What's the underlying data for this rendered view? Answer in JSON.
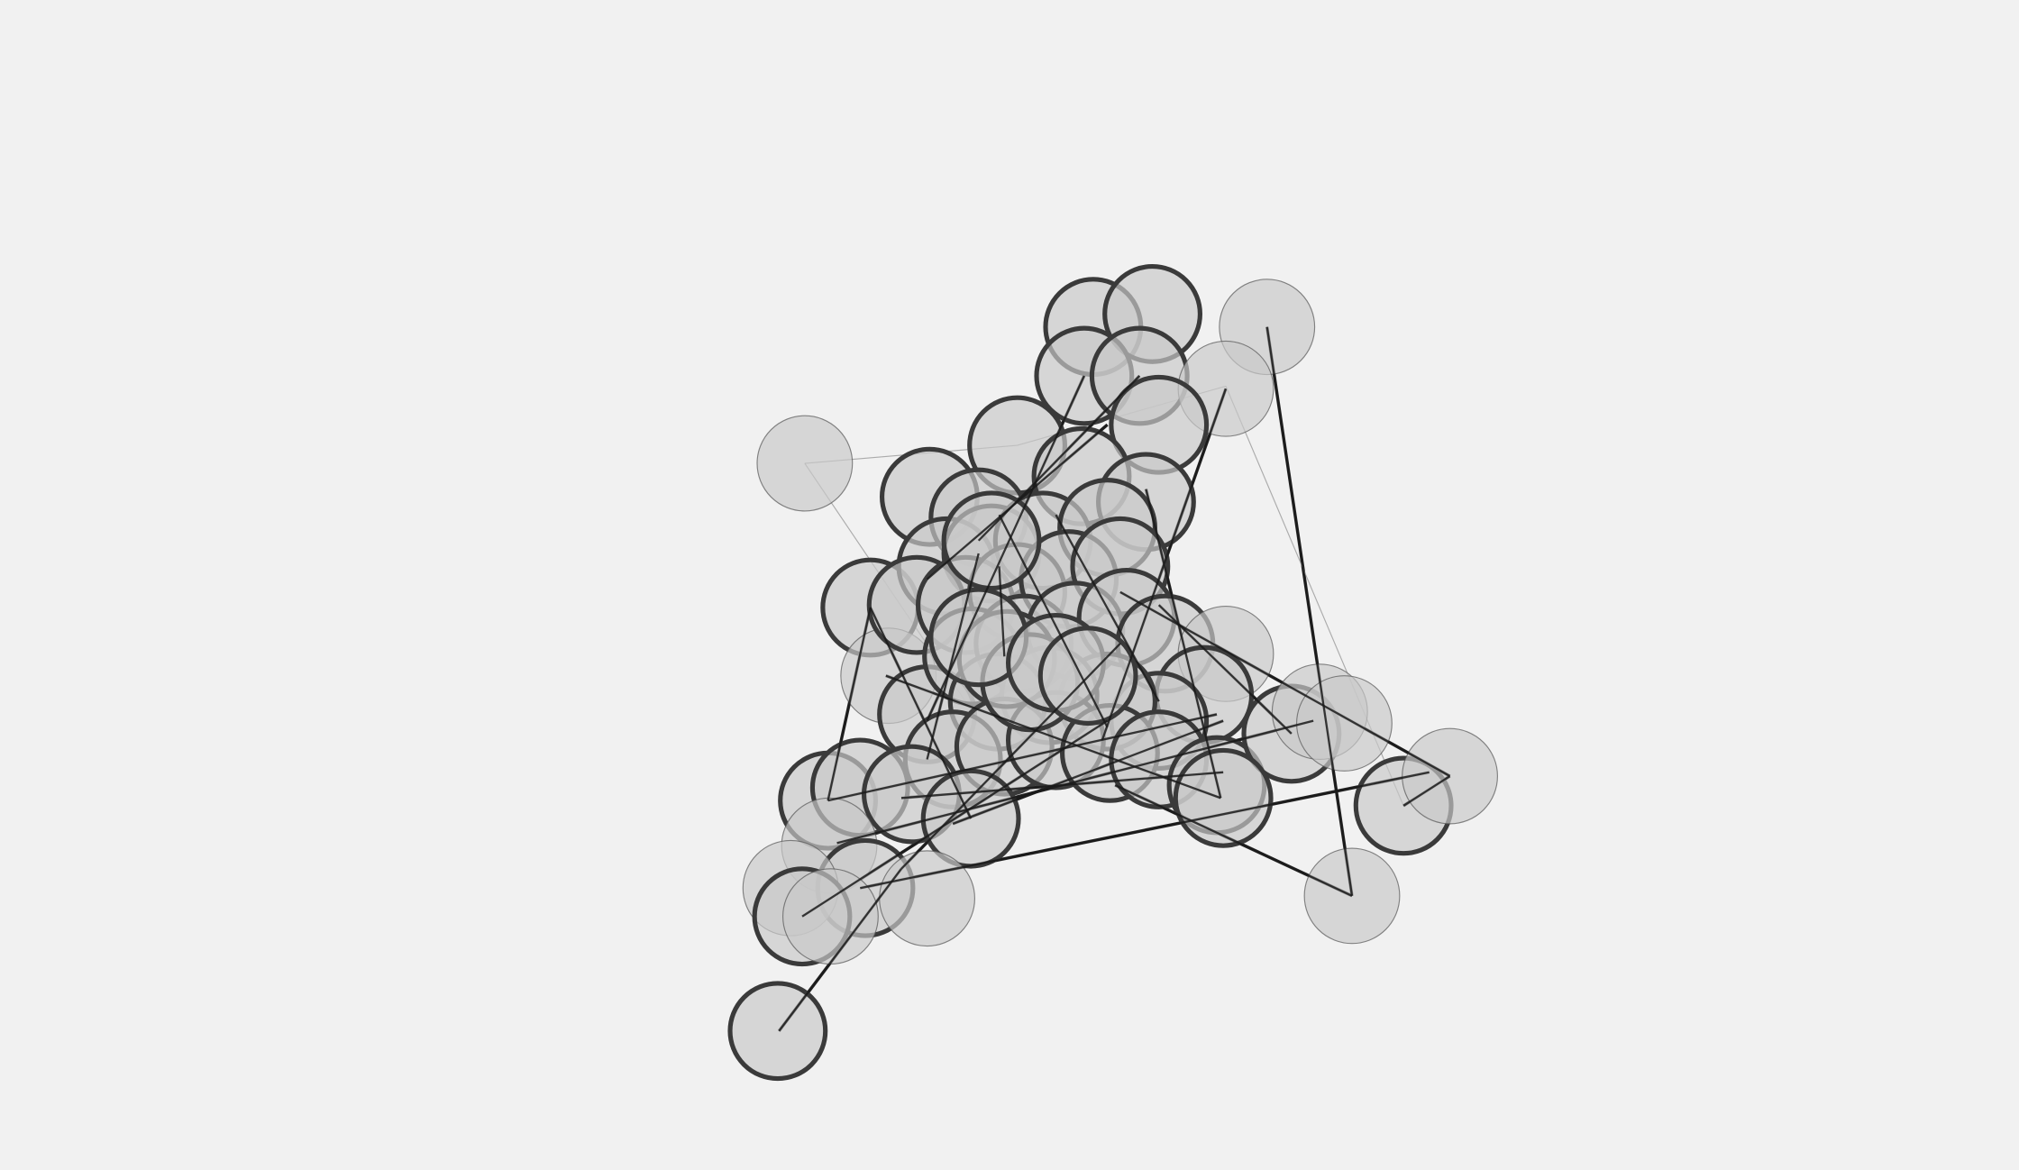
{
  "graph": {
    "colors": {
      "background": "#f1f1f1",
      "node_fill": "#c8c8c8",
      "node_stroke_strong": "#3a3a3a",
      "node_stroke_weak": "#555555",
      "edge_strong": "#1a1a1a",
      "edge_weak": "#9a9a9a"
    }
  }
}
